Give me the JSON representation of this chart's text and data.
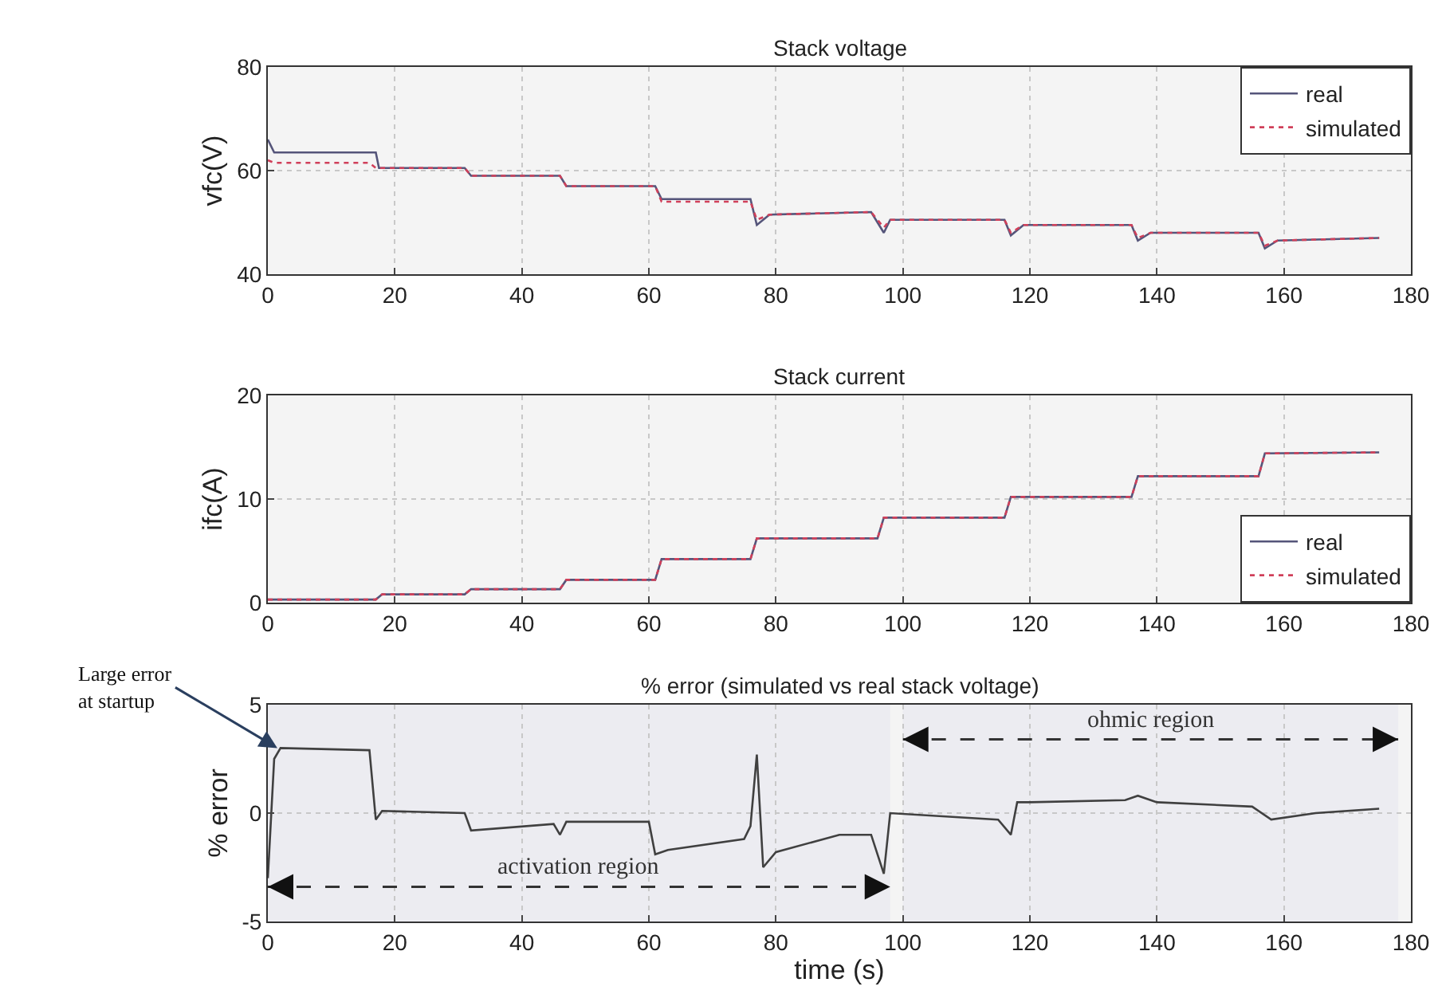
{
  "chart_data": [
    {
      "type": "line",
      "title": "Stack voltage",
      "ylabel": "vfc(V)",
      "xlim": [
        0,
        180
      ],
      "ylim": [
        40,
        80
      ],
      "xticks": [
        0,
        20,
        40,
        60,
        80,
        100,
        120,
        140,
        160,
        180
      ],
      "yticks": [
        40,
        60,
        80
      ],
      "grid": true,
      "legend": "top right",
      "series": [
        {
          "name": "real",
          "color": "#55557a",
          "line_style": "solid",
          "x": [
            0,
            1,
            17,
            17.5,
            31,
            32,
            46,
            47,
            61,
            62,
            76,
            77,
            79,
            95,
            97,
            98,
            116,
            117,
            119,
            136,
            137,
            139,
            156,
            157,
            159,
            175
          ],
          "values": [
            66,
            63.5,
            63.5,
            60.5,
            60.5,
            59,
            59,
            57,
            57,
            54.5,
            54.5,
            49.5,
            51.5,
            52,
            48,
            50.5,
            50.5,
            47.5,
            49.5,
            49.5,
            46.5,
            48,
            48,
            45,
            46.5,
            47
          ]
        },
        {
          "name": "simulated",
          "color": "#d0405a",
          "line_style": "dotted",
          "x": [
            0,
            1,
            16,
            17,
            31,
            32,
            46,
            47,
            61,
            62,
            76,
            77,
            79,
            95,
            97,
            98,
            116,
            117,
            119,
            136,
            137,
            139,
            156,
            157,
            159,
            175
          ],
          "values": [
            62,
            61.5,
            61.5,
            60.5,
            60.5,
            59,
            59,
            57,
            57,
            54,
            54,
            50.5,
            51.5,
            52,
            49,
            50.5,
            50.5,
            48,
            49.5,
            49.5,
            47,
            48,
            48,
            45.5,
            46.5,
            47
          ]
        }
      ]
    },
    {
      "type": "line",
      "title": "Stack current",
      "ylabel": "ifc(A)",
      "xlim": [
        0,
        180
      ],
      "ylim": [
        0,
        20
      ],
      "xticks": [
        0,
        20,
        40,
        60,
        80,
        100,
        120,
        140,
        160,
        180
      ],
      "yticks": [
        0,
        10,
        20
      ],
      "grid": true,
      "legend": "bottom right",
      "series": [
        {
          "name": "real",
          "color": "#55557a",
          "line_style": "solid",
          "x": [
            0,
            17,
            18,
            31,
            32,
            46,
            47,
            61,
            62,
            76,
            77,
            96,
            97,
            116,
            117,
            136,
            137,
            156,
            157,
            175
          ],
          "values": [
            0.3,
            0.3,
            0.8,
            0.8,
            1.3,
            1.3,
            2.2,
            2.2,
            4.2,
            4.2,
            6.2,
            6.2,
            8.2,
            8.2,
            10.2,
            10.2,
            12.2,
            12.2,
            14.4,
            14.5
          ]
        },
        {
          "name": "simulated",
          "color": "#d0405a",
          "line_style": "dotted",
          "x": [
            0,
            17,
            18,
            31,
            32,
            46,
            47,
            61,
            62,
            76,
            77,
            96,
            97,
            116,
            117,
            136,
            137,
            156,
            157,
            175
          ],
          "values": [
            0.3,
            0.3,
            0.8,
            0.8,
            1.3,
            1.3,
            2.2,
            2.2,
            4.2,
            4.2,
            6.2,
            6.2,
            8.2,
            8.2,
            10.2,
            10.2,
            12.2,
            12.2,
            14.4,
            14.5
          ]
        }
      ]
    },
    {
      "type": "line",
      "title": "% error (simulated vs real stack voltage)",
      "xlabel": "time (s)",
      "ylabel": "% error",
      "xlim": [
        0,
        180
      ],
      "ylim": [
        -5,
        5
      ],
      "xticks": [
        0,
        20,
        40,
        60,
        80,
        100,
        120,
        140,
        160,
        180
      ],
      "yticks": [
        -5,
        0,
        5
      ],
      "grid": true,
      "legend": false,
      "series": [
        {
          "color": "#404040",
          "line_style": "solid",
          "x": [
            0,
            1,
            2,
            16,
            17,
            18,
            31,
            32,
            45,
            46,
            47,
            60,
            61,
            63,
            75,
            76,
            77,
            78,
            80,
            90,
            95,
            97,
            98,
            115,
            117,
            118,
            120,
            135,
            137,
            140,
            155,
            158,
            165,
            175
          ],
          "values": [
            -3,
            2.5,
            3,
            2.9,
            -0.3,
            0.1,
            0,
            -0.8,
            -0.5,
            -1,
            -0.4,
            -0.4,
            -1.9,
            -1.7,
            -1.2,
            -0.6,
            2.7,
            -2.5,
            -1.8,
            -1,
            -1,
            -2.8,
            0,
            -0.3,
            -1,
            0.5,
            0.5,
            0.6,
            0.8,
            0.5,
            0.3,
            -0.3,
            0,
            0.2
          ]
        }
      ],
      "bands": [
        {
          "axis": "x",
          "from": 0,
          "to": 98,
          "label": "activation region",
          "color": "#e6e6ee"
        },
        {
          "axis": "x",
          "from": 100,
          "to": 178,
          "label": "ohmic region",
          "color": "#e6e6ee"
        }
      ],
      "annotations": [
        {
          "text": "Large error at startup",
          "x": 1.5,
          "y": 3
        }
      ]
    }
  ]
}
